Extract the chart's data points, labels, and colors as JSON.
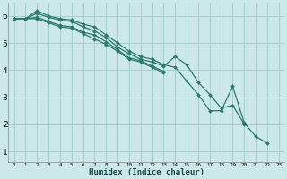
{
  "xlabel": "Humidex (Indice chaleur)",
  "ylabel": "",
  "bg_color": "#cce8e8",
  "grid_color": "#aacfcf",
  "line_color": "#2a7a6a",
  "xlim": [
    -0.5,
    23.5
  ],
  "ylim": [
    0.6,
    6.5
  ],
  "xticks": [
    0,
    1,
    2,
    3,
    4,
    5,
    6,
    7,
    8,
    9,
    10,
    11,
    12,
    13,
    14,
    15,
    16,
    17,
    18,
    19,
    20,
    21,
    22,
    23
  ],
  "yticks": [
    1,
    2,
    3,
    4,
    5,
    6
  ],
  "series": [
    [
      5.9,
      5.9,
      6.2,
      6.0,
      5.9,
      5.85,
      5.7,
      5.6,
      5.3,
      5.0,
      4.7,
      4.5,
      4.4,
      4.2,
      4.1,
      3.6,
      3.1,
      2.5,
      2.5,
      3.4,
      2.05,
      1.55,
      1.3,
      null
    ],
    [
      5.9,
      5.9,
      6.1,
      5.95,
      5.85,
      5.8,
      5.6,
      5.45,
      5.2,
      4.85,
      4.6,
      4.4,
      4.3,
      4.15,
      4.5,
      4.2,
      3.55,
      3.1,
      2.6,
      2.7,
      2.0,
      null,
      null,
      null
    ],
    [
      5.9,
      5.9,
      5.95,
      5.8,
      5.65,
      5.6,
      5.4,
      5.3,
      5.05,
      4.75,
      4.45,
      4.35,
      4.15,
      3.95,
      null,
      null,
      null,
      null,
      null,
      null,
      null,
      null,
      null,
      null
    ],
    [
      5.9,
      5.9,
      5.9,
      5.75,
      5.6,
      5.55,
      5.35,
      5.15,
      4.95,
      4.7,
      4.4,
      4.3,
      4.1,
      3.9,
      null,
      null,
      null,
      null,
      null,
      null,
      null,
      null,
      null,
      null
    ]
  ]
}
